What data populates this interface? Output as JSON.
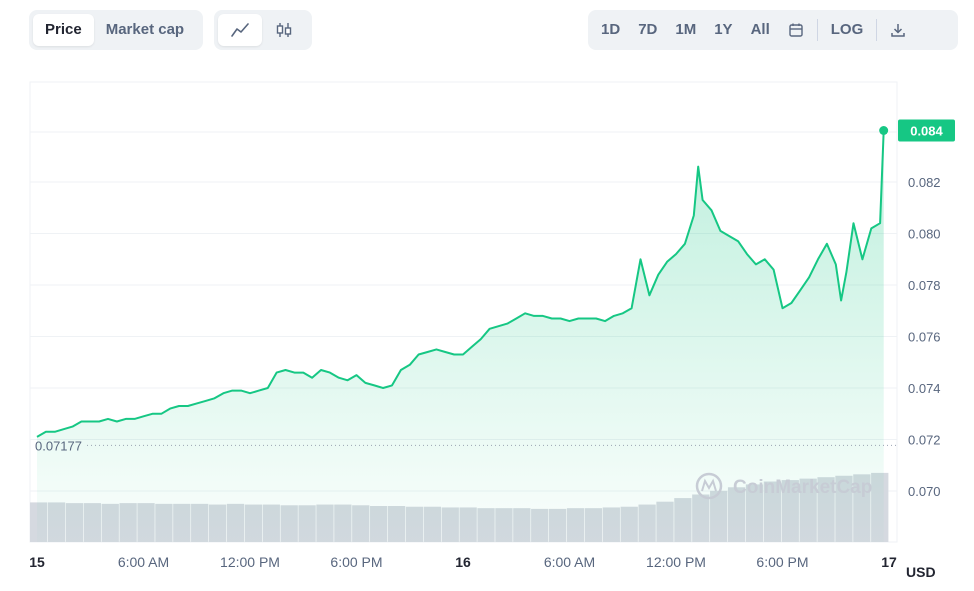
{
  "toolbar": {
    "metric_tabs": [
      "Price",
      "Market cap"
    ],
    "active_metric": "Price",
    "chart_types": [
      "line-chart-icon",
      "candlestick-icon"
    ],
    "ranges": [
      "1D",
      "7D",
      "1M",
      "1Y",
      "All"
    ],
    "calendar_icon": "calendar-icon",
    "log_label": "LOG",
    "download_icon": "download-icon"
  },
  "colors": {
    "line": "#16c784",
    "grid": "#eff2f5",
    "volume": "#d5d9e0"
  },
  "chart_data": {
    "type": "line",
    "x_tick_labels": [
      "15",
      "6:00 AM",
      "12:00 PM",
      "6:00 PM",
      "16",
      "6:00 AM",
      "12:00 PM",
      "6:00 PM",
      "17"
    ],
    "x_tick_bold": [
      "15",
      "16",
      "17"
    ],
    "y_tick_labels": [
      "0.070",
      "0.072",
      "0.074",
      "0.076",
      "0.078",
      "0.080",
      "0.082"
    ],
    "ylim": [
      0.0685,
      0.086
    ],
    "y_unit_label": "USD",
    "current_price_label": "0.084",
    "current_price": 0.084,
    "baseline_label": "0.07177",
    "baseline": 0.07177,
    "watermark": "CoinMarketCap",
    "x_range_hours": [
      0,
      48
    ],
    "series": [
      {
        "points": [
          [
            0,
            0.0721
          ],
          [
            0.5,
            0.0723
          ],
          [
            1,
            0.0723
          ],
          [
            1.5,
            0.0724
          ],
          [
            2,
            0.0725
          ],
          [
            2.5,
            0.0727
          ],
          [
            3,
            0.0727
          ],
          [
            3.5,
            0.0727
          ],
          [
            4,
            0.0728
          ],
          [
            4.5,
            0.0727
          ],
          [
            5,
            0.0728
          ],
          [
            5.5,
            0.0728
          ],
          [
            6,
            0.0729
          ],
          [
            6.5,
            0.073
          ],
          [
            7,
            0.073
          ],
          [
            7.5,
            0.0732
          ],
          [
            8,
            0.0733
          ],
          [
            8.5,
            0.0733
          ],
          [
            9,
            0.0734
          ],
          [
            9.5,
            0.0735
          ],
          [
            10,
            0.0736
          ],
          [
            10.5,
            0.0738
          ],
          [
            11,
            0.0739
          ],
          [
            11.5,
            0.0739
          ],
          [
            12,
            0.0738
          ],
          [
            12.5,
            0.0739
          ],
          [
            13,
            0.074
          ],
          [
            13.5,
            0.0746
          ],
          [
            14,
            0.0747
          ],
          [
            14.5,
            0.0746
          ],
          [
            15,
            0.0746
          ],
          [
            15.5,
            0.0744
          ],
          [
            16,
            0.0747
          ],
          [
            16.5,
            0.0746
          ],
          [
            17,
            0.0744
          ],
          [
            17.5,
            0.0743
          ],
          [
            18,
            0.0745
          ],
          [
            18.5,
            0.0742
          ],
          [
            19,
            0.0741
          ],
          [
            19.5,
            0.074
          ],
          [
            20,
            0.0741
          ],
          [
            20.5,
            0.0747
          ],
          [
            21,
            0.0749
          ],
          [
            21.5,
            0.0753
          ],
          [
            22,
            0.0754
          ],
          [
            22.5,
            0.0755
          ],
          [
            23,
            0.0754
          ],
          [
            23.5,
            0.0753
          ],
          [
            24,
            0.0753
          ],
          [
            24.5,
            0.0756
          ],
          [
            25,
            0.0759
          ],
          [
            25.5,
            0.0763
          ],
          [
            26,
            0.0764
          ],
          [
            26.5,
            0.0765
          ],
          [
            27,
            0.0767
          ],
          [
            27.5,
            0.0769
          ],
          [
            28,
            0.0768
          ],
          [
            28.5,
            0.0768
          ],
          [
            29,
            0.0767
          ],
          [
            29.5,
            0.0767
          ],
          [
            30,
            0.0766
          ],
          [
            30.5,
            0.0767
          ],
          [
            31,
            0.0767
          ],
          [
            31.5,
            0.0767
          ],
          [
            32,
            0.0766
          ],
          [
            32.5,
            0.0768
          ],
          [
            33,
            0.0769
          ],
          [
            33.5,
            0.0771
          ],
          [
            34,
            0.079
          ],
          [
            34.5,
            0.0776
          ],
          [
            35,
            0.0784
          ],
          [
            35.5,
            0.0789
          ],
          [
            36,
            0.0792
          ],
          [
            36.5,
            0.0796
          ],
          [
            37,
            0.0807
          ],
          [
            37.25,
            0.0826
          ],
          [
            37.5,
            0.0813
          ],
          [
            38,
            0.0809
          ],
          [
            38.5,
            0.0801
          ],
          [
            39,
            0.0799
          ],
          [
            39.5,
            0.0797
          ],
          [
            40,
            0.0792
          ],
          [
            40.5,
            0.0788
          ],
          [
            41,
            0.079
          ],
          [
            41.5,
            0.0786
          ],
          [
            42,
            0.0771
          ],
          [
            42.5,
            0.0773
          ],
          [
            43,
            0.0778
          ],
          [
            43.5,
            0.0783
          ],
          [
            44,
            0.079
          ],
          [
            44.5,
            0.0796
          ],
          [
            45,
            0.0788
          ],
          [
            45.3,
            0.0774
          ],
          [
            45.6,
            0.0785
          ],
          [
            46,
            0.0804
          ],
          [
            46.5,
            0.079
          ],
          [
            47,
            0.0802
          ],
          [
            47.5,
            0.0804
          ],
          [
            47.7,
            0.084
          ]
        ]
      }
    ],
    "volume": [
      55,
      55,
      54,
      54,
      53,
      54,
      54,
      53,
      53,
      53,
      52,
      53,
      52,
      52,
      51,
      51,
      52,
      52,
      51,
      50,
      50,
      49,
      49,
      48,
      48,
      47,
      47,
      47,
      46,
      46,
      47,
      47,
      48,
      49,
      52,
      56,
      61,
      66,
      71,
      76,
      80,
      84,
      86,
      88,
      90,
      92,
      94,
      96
    ]
  }
}
